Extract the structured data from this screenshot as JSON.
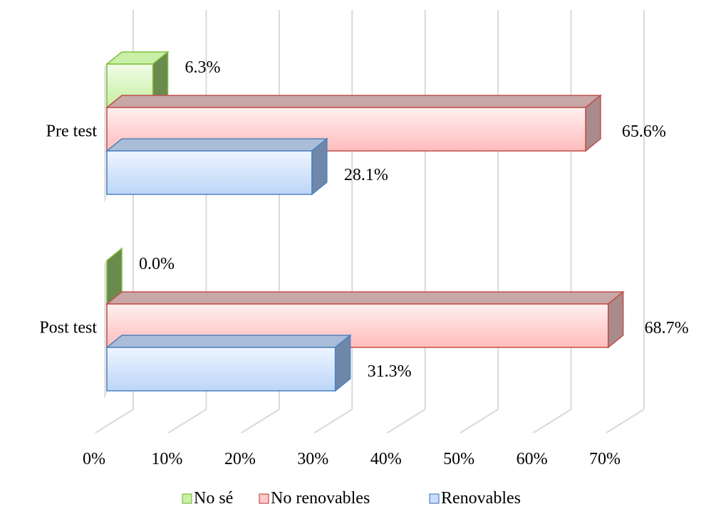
{
  "chart_data": {
    "type": "bar",
    "orientation": "horizontal",
    "style": "3d-clustered",
    "categories": [
      "Pre test",
      "Post test"
    ],
    "series": [
      {
        "name": "No sé",
        "values": [
          6.3,
          0.0
        ],
        "color": "#c9f0a6",
        "edge": "#7fbf3f",
        "labels": [
          "6.3%",
          "0.0%"
        ]
      },
      {
        "name": "No renovables",
        "values": [
          65.6,
          68.7
        ],
        "color": "#ffc9c9",
        "edge": "#c0504d",
        "labels": [
          "65.6%",
          "68.7%"
        ]
      },
      {
        "name": "Renovables",
        "values": [
          28.1,
          31.3
        ],
        "color": "#c9defa",
        "edge": "#4f81bd",
        "labels": [
          "28.1%",
          "31.3%"
        ]
      }
    ],
    "x_ticks": [
      "0%",
      "10%",
      "20%",
      "30%",
      "40%",
      "50%",
      "60%",
      "70%"
    ],
    "xlim": [
      0,
      70
    ],
    "legend_position": "bottom",
    "grid": true
  }
}
